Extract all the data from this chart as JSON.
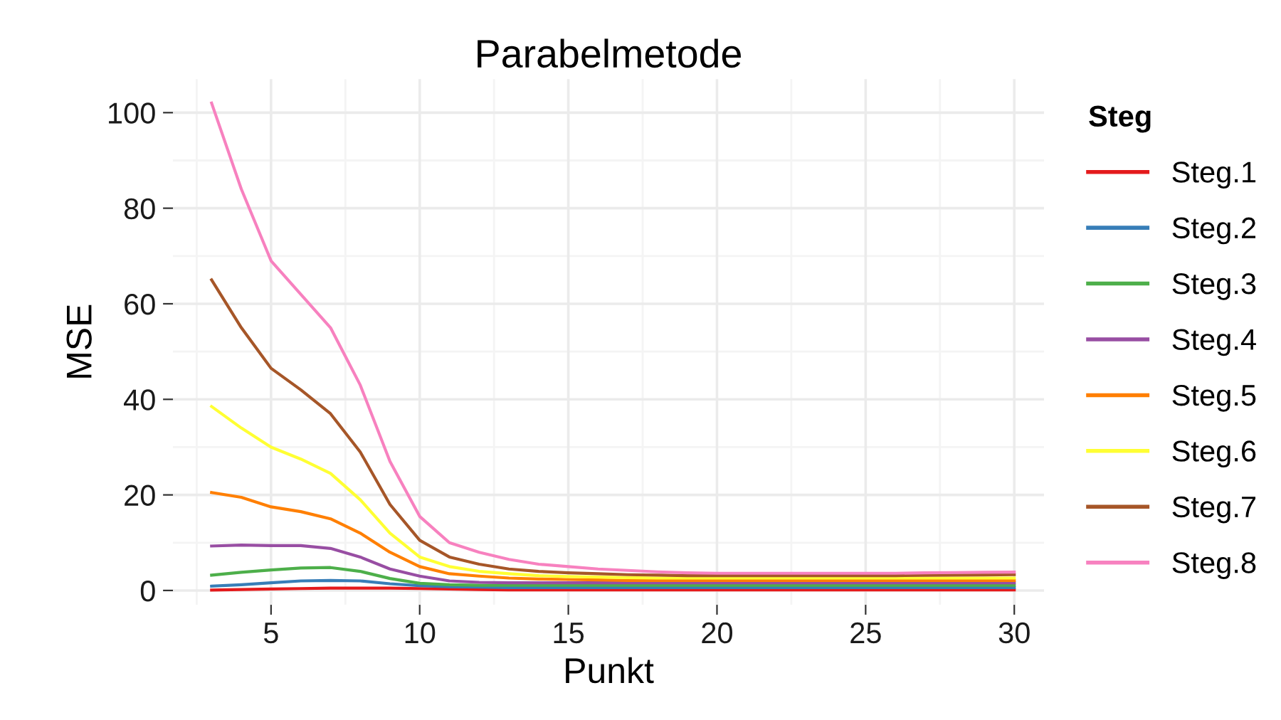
{
  "chart_data": {
    "type": "line",
    "title": "Parabelmetode",
    "xlabel": "Punkt",
    "ylabel": "MSE",
    "legend_title": "Steg",
    "legend": "right",
    "grid": true,
    "x": [
      3,
      4,
      5,
      6,
      7,
      8,
      9,
      10,
      11,
      12,
      13,
      14,
      15,
      16,
      17,
      18,
      19,
      20,
      21,
      22,
      23,
      24,
      25,
      26,
      27,
      28,
      29,
      30
    ],
    "xlim": [
      1.7,
      31
    ],
    "ylim": [
      -3,
      107
    ],
    "xticks": [
      5,
      10,
      15,
      20,
      25,
      30
    ],
    "yticks": [
      0,
      20,
      40,
      60,
      80,
      100
    ],
    "series": [
      {
        "name": "Steg.1",
        "color": "#e41a1c",
        "values": [
          0.1,
          0.2,
          0.3,
          0.4,
          0.5,
          0.5,
          0.5,
          0.4,
          0.3,
          0.2,
          0.1,
          0.1,
          0.1,
          0.1,
          0.1,
          0.1,
          0.1,
          0.1,
          0.1,
          0.1,
          0.1,
          0.1,
          0.1,
          0.1,
          0.1,
          0.1,
          0.1,
          0.1
        ]
      },
      {
        "name": "Steg.2",
        "color": "#377eb8",
        "values": [
          0.9,
          1.2,
          1.6,
          2,
          2.1,
          2,
          1.4,
          1,
          0.8,
          0.7,
          0.6,
          0.6,
          0.6,
          0.6,
          0.6,
          0.6,
          0.6,
          0.6,
          0.6,
          0.6,
          0.6,
          0.6,
          0.6,
          0.6,
          0.6,
          0.6,
          0.6,
          0.6
        ]
      },
      {
        "name": "Steg.3",
        "color": "#4daf4a",
        "values": [
          3.2,
          3.8,
          4.3,
          4.7,
          4.8,
          4,
          2.5,
          1.5,
          1.2,
          1.1,
          1.1,
          1.1,
          1.1,
          1.1,
          1.1,
          1.1,
          1.1,
          1.1,
          1.1,
          1.1,
          1.1,
          1.1,
          1.1,
          1.1,
          1.1,
          1.1,
          1.1,
          1.1
        ]
      },
      {
        "name": "Steg.4",
        "color": "#984ea3",
        "values": [
          9.3,
          9.5,
          9.4,
          9.4,
          8.8,
          7,
          4.5,
          3,
          2,
          1.7,
          1.6,
          1.6,
          1.6,
          1.6,
          1.6,
          1.6,
          1.6,
          1.6,
          1.6,
          1.6,
          1.6,
          1.6,
          1.6,
          1.6,
          1.6,
          1.6,
          1.6,
          1.6
        ]
      },
      {
        "name": "Steg.5",
        "color": "#ff7f00",
        "values": [
          20.5,
          19.5,
          17.5,
          16.5,
          15,
          12,
          8,
          5,
          3.5,
          3,
          2.6,
          2.4,
          2.3,
          2.2,
          2.1,
          2.1,
          2.1,
          2.1,
          2.1,
          2.1,
          2.1,
          2.1,
          2.1,
          2.1,
          2.1,
          2.1,
          2.1,
          2.1
        ]
      },
      {
        "name": "Steg.6",
        "color": "#ffff33",
        "values": [
          38.5,
          34,
          30,
          27.5,
          24.5,
          19,
          12,
          7,
          5,
          4,
          3.5,
          3.1,
          2.9,
          2.8,
          2.7,
          2.6,
          2.6,
          2.6,
          2.6,
          2.6,
          2.6,
          2.6,
          2.6,
          2.6,
          2.6,
          2.6,
          2.6,
          2.6
        ]
      },
      {
        "name": "Steg.7",
        "color": "#a65628",
        "values": [
          65,
          55,
          46.5,
          42,
          37,
          29,
          18,
          10.5,
          7,
          5.5,
          4.5,
          4,
          3.7,
          3.5,
          3.3,
          3.2,
          3.1,
          3.1,
          3.1,
          3.1,
          3.1,
          3.1,
          3.1,
          3.1,
          3.15,
          3.2,
          3.25,
          3.3
        ]
      },
      {
        "name": "Steg.8",
        "color": "#f781bf",
        "values": [
          102,
          84,
          69,
          62,
          55,
          43,
          27,
          15.5,
          10,
          8,
          6.5,
          5.5,
          5,
          4.5,
          4.2,
          3.9,
          3.7,
          3.6,
          3.6,
          3.6,
          3.6,
          3.6,
          3.6,
          3.6,
          3.7,
          3.75,
          3.8,
          3.85
        ]
      }
    ]
  }
}
